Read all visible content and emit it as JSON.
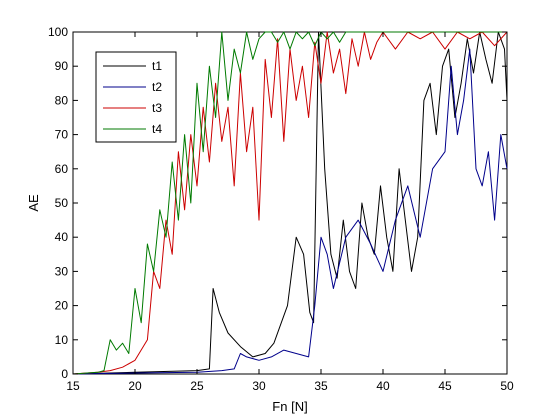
{
  "chart_data": {
    "type": "line",
    "title": "",
    "xlabel": "Fn [N]",
    "ylabel": "AE",
    "xlim": [
      15,
      50
    ],
    "ylim": [
      0,
      100
    ],
    "xticks": [
      15,
      20,
      25,
      30,
      35,
      40,
      45,
      50
    ],
    "yticks": [
      0,
      10,
      20,
      30,
      40,
      50,
      60,
      70,
      80,
      90,
      100
    ],
    "grid": false,
    "legend_position": "top-left",
    "series": [
      {
        "name": "t1",
        "color": "#000000",
        "x": [
          15,
          20,
          25,
          26,
          26.3,
          26.8,
          27.5,
          28.5,
          29.5,
          30.5,
          31.2,
          31.8,
          32.3,
          33,
          33.6,
          34.1,
          34.4,
          34.8,
          35.3,
          35.8,
          36.3,
          36.8,
          37.3,
          37.8,
          38.3,
          38.8,
          39.3,
          39.8,
          40.3,
          40.8,
          41.3,
          41.8,
          42.3,
          42.8,
          43.3,
          43.8,
          44.3,
          44.8,
          45.3,
          45.8,
          46.3,
          46.8,
          47.3,
          47.8,
          48.3,
          48.8,
          49.3,
          49.8,
          50
        ],
        "y": [
          0,
          0.5,
          1,
          1.5,
          25,
          18,
          12,
          8,
          5,
          6,
          9,
          15,
          20,
          40,
          35,
          18,
          15,
          100,
          60,
          35,
          28,
          45,
          30,
          25,
          50,
          40,
          35,
          55,
          40,
          30,
          60,
          45,
          30,
          40,
          80,
          85,
          70,
          90,
          95,
          75,
          85,
          98,
          88,
          100,
          92,
          85,
          100,
          95,
          80
        ]
      },
      {
        "name": "t2",
        "color": "#00008b",
        "x": [
          15,
          20,
          25,
          27,
          28,
          28.5,
          29,
          30,
          31,
          32,
          33,
          34,
          34.5,
          35,
          35.5,
          36,
          37,
          38,
          39,
          40,
          41,
          42,
          43,
          44,
          45,
          45.5,
          46,
          46.5,
          47,
          47.5,
          48,
          48.5,
          49,
          49.5,
          50
        ],
        "y": [
          0,
          0.3,
          0.5,
          1,
          1.5,
          6,
          5,
          4,
          5,
          7,
          6,
          5,
          20,
          40,
          35,
          25,
          40,
          45,
          38,
          30,
          45,
          55,
          40,
          60,
          65,
          90,
          70,
          80,
          95,
          60,
          55,
          65,
          45,
          70,
          60
        ]
      },
      {
        "name": "t3",
        "color": "#cc0000",
        "x": [
          15,
          17,
          18,
          19,
          20,
          21,
          21.5,
          22,
          22.5,
          23,
          23.5,
          24,
          24.5,
          25,
          25.5,
          26,
          26.5,
          27,
          27.5,
          28,
          28.5,
          29,
          29.5,
          30,
          30.5,
          31,
          31.5,
          32,
          32.5,
          33,
          33.5,
          34,
          34.5,
          35,
          35.5,
          36,
          36.5,
          37,
          37.5,
          38,
          38.5,
          39,
          39.5,
          40,
          41,
          42,
          43,
          44,
          45,
          46,
          47,
          48,
          49,
          50
        ],
        "y": [
          0,
          0.5,
          1,
          2,
          4,
          10,
          30,
          25,
          45,
          35,
          65,
          48,
          70,
          55,
          78,
          62,
          85,
          68,
          78,
          55,
          88,
          65,
          78,
          45,
          92,
          75,
          98,
          68,
          95,
          80,
          90,
          75,
          97,
          85,
          100,
          88,
          95,
          82,
          98,
          90,
          100,
          92,
          97,
          100,
          95,
          100,
          98,
          100,
          95,
          100,
          98,
          100,
          96,
          100
        ]
      },
      {
        "name": "t4",
        "color": "#007a00",
        "x": [
          15,
          17,
          17.5,
          18,
          18.5,
          19,
          19.5,
          20,
          20.5,
          21,
          21.5,
          22,
          22.5,
          23,
          23.5,
          24,
          24.5,
          25,
          25.5,
          26,
          26.5,
          27,
          27.5,
          28,
          28.5,
          29,
          29.5,
          30,
          30.5,
          31,
          31.5,
          32,
          32.5,
          33,
          33.5,
          34,
          34.5,
          35,
          35.5,
          36,
          36.5,
          37,
          38,
          39,
          40,
          42,
          44,
          46,
          48,
          50
        ],
        "y": [
          0,
          0.5,
          1,
          10,
          7,
          9,
          6,
          25,
          15,
          38,
          30,
          48,
          40,
          62,
          45,
          70,
          50,
          85,
          65,
          90,
          75,
          100,
          80,
          95,
          88,
          100,
          92,
          98,
          100,
          100,
          97,
          100,
          95,
          100,
          98,
          100,
          96,
          100,
          98,
          100,
          97,
          100,
          100,
          100,
          100,
          100,
          100,
          100,
          100,
          100
        ]
      }
    ]
  }
}
